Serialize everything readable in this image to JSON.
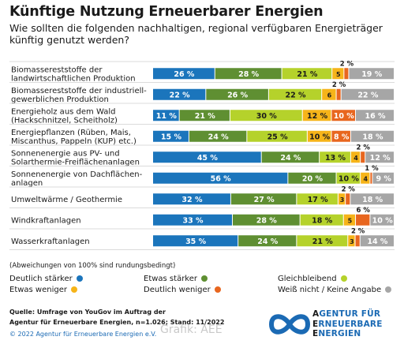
{
  "title": "Künftige Nutzung Erneuerbarer Energien",
  "subtitle": "Wie sollten die folgenden nachhaltigen, regional verfügbaren Energieträger künftig genutzt werden?",
  "note": "(Abweichungen von 100% sind rundungsbedingt)",
  "source_line1": "Quelle: Umfrage von YouGov im Auftrag der",
  "source_line2": "Agentur für Erneuerbare Energien, n=1.026; Stand: 11/2022",
  "copyright": "© 2022 Agentur für Erneuerbare Energien e.V.",
  "credit": "Grafik: AEE",
  "logo": {
    "line1_initial": "A",
    "line1_rest": "GENTUR FÜR",
    "line2_initial": "E",
    "line2_rest": "RNEUERBARE",
    "line3_initial": "E",
    "line3_rest": "NERGIEN",
    "icon": "infinity-loop-logo-icon"
  },
  "chart_data": {
    "type": "bar",
    "orientation": "horizontal",
    "stacked": true,
    "xlim": [
      0,
      100
    ],
    "categories": [
      [
        "Biomassereststoffe der",
        "landwirtschaftlichen Produktion"
      ],
      [
        "Biomassereststoffe der industriell-",
        "gewerblichen Produktion"
      ],
      [
        "Energieholz aus dem Wald",
        "(Hackschnitzel, Scheitholz)"
      ],
      [
        "Energiepflanzen (Rüben, Mais,",
        "Miscanthus, Pappeln (KUP) etc.)"
      ],
      [
        "Sonnenenergie aus PV- und",
        "Solarthermie-Freiflächenanlagen"
      ],
      [
        "Sonnenenergie von Dachflächen-",
        "anlagen"
      ],
      [
        "Umweltwärme / Geothermie"
      ],
      [
        "Windkraftanlagen"
      ],
      [
        "Wasserkraftanlagen"
      ]
    ],
    "series": [
      {
        "name": "Deutlich stärker",
        "color": "#1b75bc",
        "values": [
          26,
          22,
          11,
          15,
          45,
          56,
          32,
          33,
          35
        ]
      },
      {
        "name": "Etwas stärker",
        "color": "#5f8f32",
        "values": [
          28,
          26,
          21,
          24,
          24,
          20,
          27,
          28,
          24
        ]
      },
      {
        "name": "Gleichbleibend",
        "color": "#b5d22b",
        "values": [
          21,
          22,
          30,
          25,
          13,
          10,
          17,
          18,
          21
        ]
      },
      {
        "name": "Etwas weniger",
        "color": "#f6b419",
        "values": [
          5,
          6,
          12,
          10,
          4,
          4,
          3,
          5,
          3
        ]
      },
      {
        "name": "Deutlich weniger",
        "color": "#e8661f",
        "values": [
          2,
          2,
          10,
          8,
          2,
          1,
          2,
          6,
          2
        ]
      },
      {
        "name": "Weiß nicht / Keine Angabe",
        "color": "#a6a6a6",
        "values": [
          19,
          22,
          16,
          18,
          12,
          9,
          18,
          10,
          14
        ]
      }
    ],
    "value_suffix": " %"
  }
}
